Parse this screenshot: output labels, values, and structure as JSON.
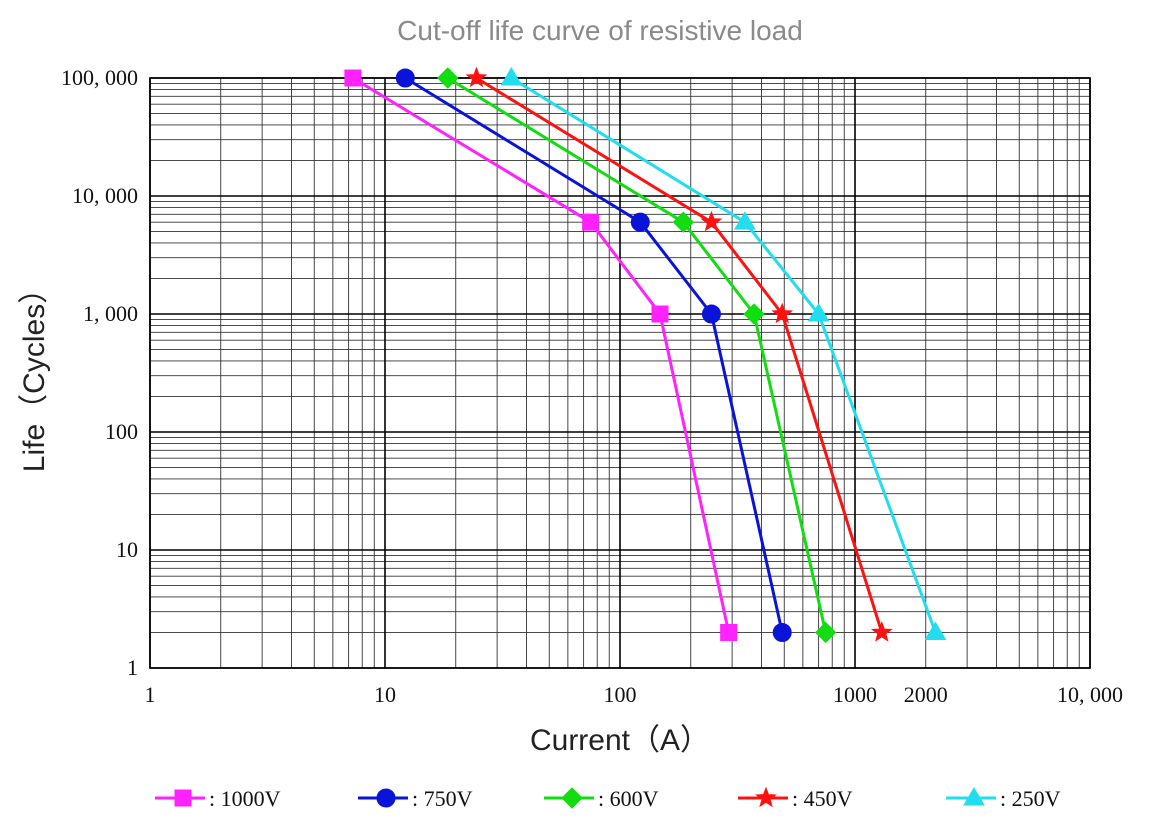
{
  "chart_data": {
    "type": "line",
    "title": "Cut-off life curve of resistive load",
    "xlabel": "Current（A）",
    "ylabel": "Life（Cycles）",
    "x_scale": "log",
    "y_scale": "log",
    "xlim": [
      1,
      10000
    ],
    "ylim": [
      1,
      100000
    ],
    "grid": true,
    "legend_position": "bottom",
    "x_ticks": [
      {
        "value": 1,
        "label": "1"
      },
      {
        "value": 10,
        "label": "10"
      },
      {
        "value": 100,
        "label": "100"
      },
      {
        "value": 1000,
        "label": "1000"
      },
      {
        "value": 2000,
        "label": "2000"
      },
      {
        "value": 10000,
        "label": "10, 000"
      }
    ],
    "y_ticks": [
      {
        "value": 1,
        "label": "1"
      },
      {
        "value": 10,
        "label": "10"
      },
      {
        "value": 100,
        "label": "100"
      },
      {
        "value": 1000,
        "label": "1, 000"
      },
      {
        "value": 10000,
        "label": "10, 000"
      },
      {
        "value": 100000,
        "label": "100, 000"
      }
    ],
    "series": [
      {
        "name": ": 1000V",
        "color": "#ff22ff",
        "marker": "square",
        "points": [
          [
            7.3,
            100000
          ],
          [
            75,
            6000
          ],
          [
            148,
            1000
          ],
          [
            290,
            2
          ]
        ]
      },
      {
        "name": ": 750V",
        "color": "#0a14d8",
        "marker": "circle",
        "points": [
          [
            12.2,
            100000
          ],
          [
            122,
            6000
          ],
          [
            245,
            1000
          ],
          [
            490,
            2
          ]
        ]
      },
      {
        "name": ": 600V",
        "color": "#11dd11",
        "marker": "diamond",
        "points": [
          [
            18.5,
            100000
          ],
          [
            186,
            6000
          ],
          [
            372,
            1000
          ],
          [
            750,
            2
          ]
        ]
      },
      {
        "name": ": 450V",
        "color": "#ff1111",
        "marker": "star",
        "points": [
          [
            24.5,
            100000
          ],
          [
            245,
            6000
          ],
          [
            490,
            1000
          ],
          [
            1300,
            2
          ]
        ]
      },
      {
        "name": ": 250V",
        "color": "#22ddee",
        "marker": "triangle",
        "points": [
          [
            34.5,
            100000
          ],
          [
            340,
            6000
          ],
          [
            700,
            1000
          ],
          [
            2200,
            2
          ]
        ]
      }
    ]
  }
}
